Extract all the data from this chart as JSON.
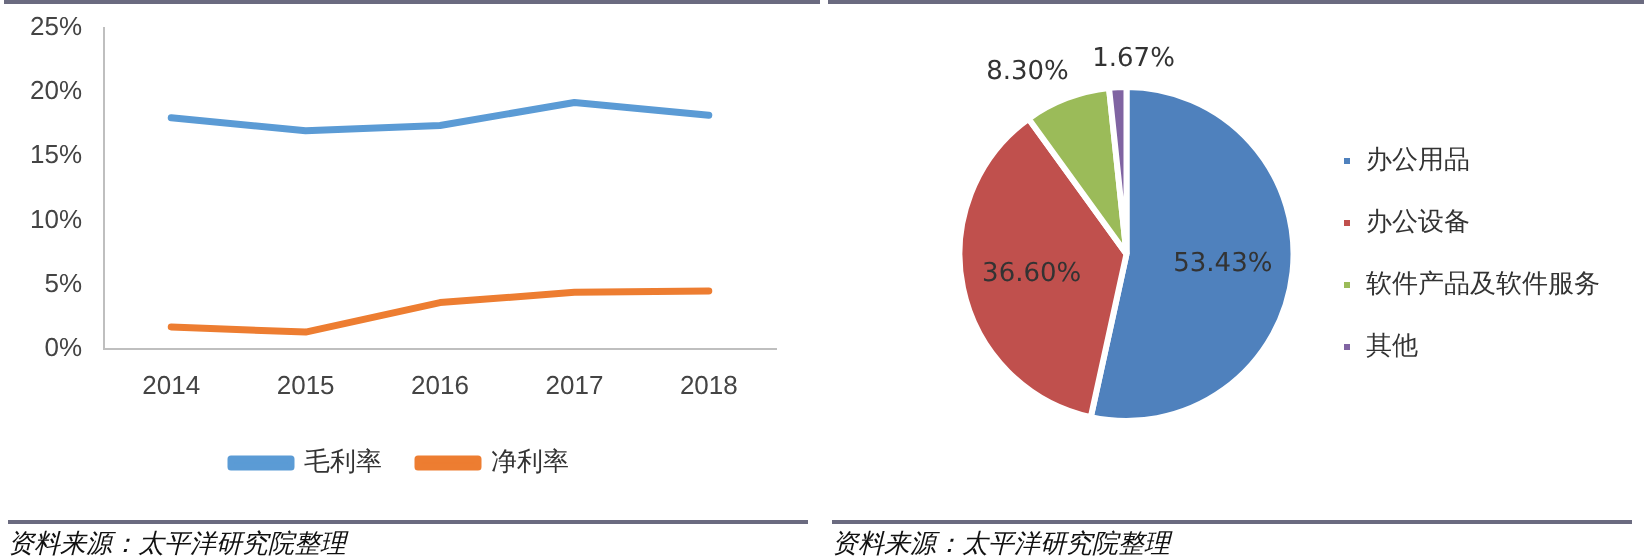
{
  "chart_data": [
    {
      "type": "line",
      "categories": [
        "2014",
        "2015",
        "2016",
        "2017",
        "2018"
      ],
      "series": [
        {
          "name": "毛利率",
          "color": "#5b9bd5",
          "values": [
            18.0,
            17.0,
            17.4,
            19.2,
            18.2
          ]
        },
        {
          "name": "净利率",
          "color": "#ed7d31",
          "values": [
            1.7,
            1.3,
            3.6,
            4.4,
            4.5
          ]
        }
      ],
      "ylim": [
        0,
        25
      ],
      "yticks": [
        {
          "value": 0,
          "label": "0%"
        },
        {
          "value": 5,
          "label": "5%"
        },
        {
          "value": 10,
          "label": "10%"
        },
        {
          "value": 15,
          "label": "15%"
        },
        {
          "value": 20,
          "label": "20%"
        },
        {
          "value": 25,
          "label": "25%"
        }
      ],
      "grid": false,
      "legend": "bottom",
      "marker": "none",
      "line_style": "solid",
      "annotations": [
        "资料来源：太平洋研究院整理"
      ]
    },
    {
      "type": "pie",
      "categories": [
        "办公用品",
        "办公设备",
        "软件产品及软件服务",
        "其他"
      ],
      "values": [
        53.43,
        36.6,
        8.3,
        1.67
      ],
      "colors": [
        "#4f81bd",
        "#c0504d",
        "#9bbb59",
        "#8064a2"
      ],
      "value_labels": [
        "53.43%",
        "36.60%",
        "8.30%",
        "1.67%"
      ],
      "legend": "right",
      "annotations": [
        "资料来源：太平洋研究院整理"
      ]
    }
  ]
}
